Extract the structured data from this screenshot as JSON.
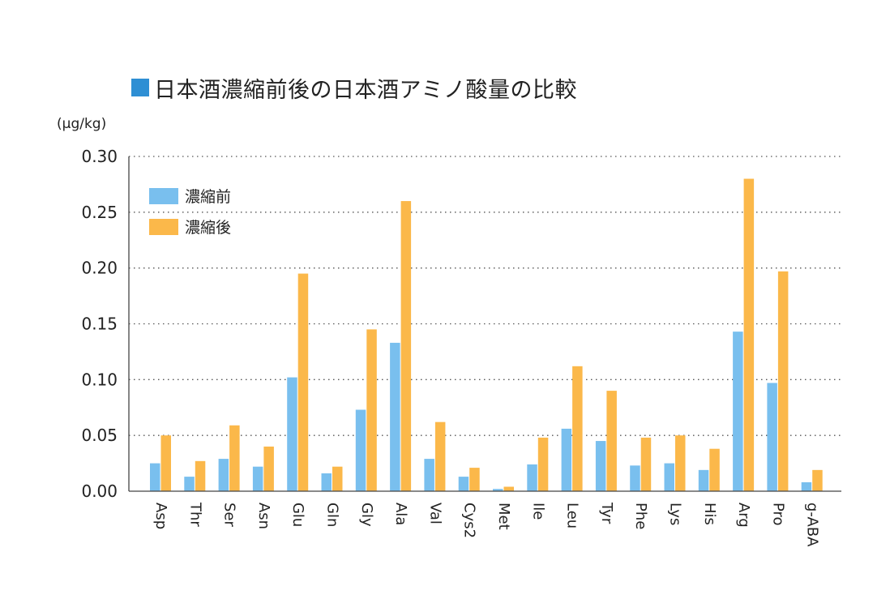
{
  "title": "日本酒濃縮前後の日本酒アミノ酸量の比較",
  "colors": {
    "title_marker": "#2e8fd4",
    "before": "#79bfee",
    "after": "#fbb84a",
    "axis": "#444444",
    "grid": "#555555"
  },
  "chart_data": {
    "type": "bar",
    "title": "日本酒濃縮前後の日本酒アミノ酸量の比較",
    "ylabel": "(μg/kg)",
    "xlabel": "",
    "ylim": [
      0,
      0.3
    ],
    "yticks": [
      "0.00",
      "0.05",
      "0.10",
      "0.15",
      "0.20",
      "0.25",
      "0.30"
    ],
    "grid": "horizontal dotted",
    "legend_position": "top-left",
    "categories": [
      "Asp",
      "Thr",
      "Ser",
      "Asn",
      "Glu",
      "Gln",
      "Gly",
      "Ala",
      "Val",
      "Cys2",
      "Met",
      "Ile",
      "Leu",
      "Tyr",
      "Phe",
      "Lys",
      "His",
      "Arg",
      "Pro",
      "g-ABA"
    ],
    "series": [
      {
        "name": "濃縮前",
        "values": [
          0.025,
          0.013,
          0.029,
          0.022,
          0.102,
          0.016,
          0.073,
          0.133,
          0.029,
          0.013,
          0.002,
          0.024,
          0.056,
          0.045,
          0.023,
          0.025,
          0.019,
          0.143,
          0.097,
          0.008
        ]
      },
      {
        "name": "濃縮後",
        "values": [
          0.05,
          0.027,
          0.059,
          0.04,
          0.195,
          0.022,
          0.145,
          0.26,
          0.062,
          0.021,
          0.004,
          0.048,
          0.112,
          0.09,
          0.048,
          0.05,
          0.038,
          0.28,
          0.197,
          0.019
        ]
      }
    ]
  }
}
